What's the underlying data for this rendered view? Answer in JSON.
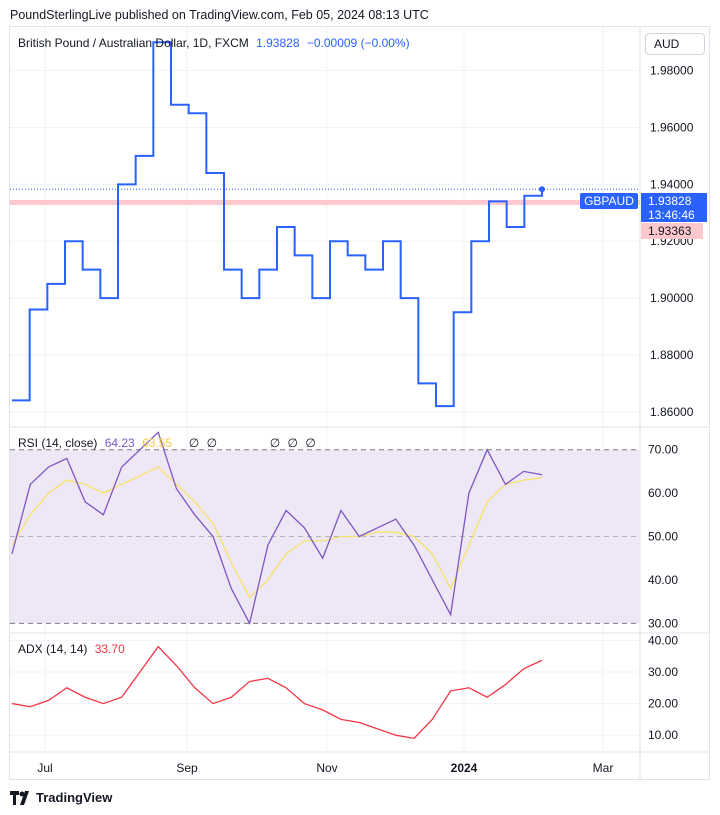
{
  "header": {
    "text": "PoundSterlingLive published on TradingView.com, Feb 05, 2024 08:13 UTC"
  },
  "price_pane": {
    "symbol_title": "British Pound / Australian Dollar, 1D, FXCM",
    "last": "1.93828",
    "change": "−0.00009 (−0.00%)",
    "currency_button": "AUD",
    "y_ticks": [
      "1.98000",
      "1.96000",
      "1.94000",
      "1.92000",
      "1.90000",
      "1.88000",
      "1.86000"
    ],
    "badge_symbol": "GBPAUD",
    "badge_price": "1.93828",
    "badge_time": "13:46:46",
    "level_price": "1.93363"
  },
  "rsi_pane": {
    "label": "RSI (14, close)",
    "rsi_value": "64.23",
    "ma_value": "63.55",
    "extra_marks": [
      "∅",
      "∅",
      "∅",
      "∅",
      "∅"
    ],
    "y_ticks": [
      "70.00",
      "60.00",
      "50.00",
      "40.00",
      "30.00"
    ]
  },
  "adx_pane": {
    "label": "ADX (14, 14)",
    "value": "33.70",
    "y_ticks": [
      "40.00",
      "30.00",
      "20.00",
      "10.00"
    ]
  },
  "x_axis": {
    "ticks": [
      "Jul",
      "Sep",
      "Nov",
      "2024",
      "Mar"
    ]
  },
  "footer": {
    "brand": "TradingView"
  },
  "colors": {
    "price": "#2962ff",
    "rsi": "#7e57c2",
    "rsi_ma": "#f7e36a",
    "adx": "#f23645",
    "level": "#ffc8cc",
    "rsi_band": "#ede7f6"
  },
  "chart_data": [
    {
      "type": "line",
      "title": "British Pound / Australian Dollar, 1D, FXCM",
      "series": [
        {
          "name": "GBPAUD",
          "x": [
            "2023-06-12",
            "2023-06-20",
            "2023-06-28",
            "2023-07-06",
            "2023-07-14",
            "2023-07-22",
            "2023-07-30",
            "2023-08-07",
            "2023-08-15",
            "2023-08-23",
            "2023-08-31",
            "2023-09-08",
            "2023-09-16",
            "2023-09-24",
            "2023-10-02",
            "2023-10-10",
            "2023-10-18",
            "2023-10-26",
            "2023-11-03",
            "2023-11-11",
            "2023-11-19",
            "2023-11-27",
            "2023-12-05",
            "2023-12-13",
            "2023-12-21",
            "2023-12-29",
            "2024-01-06",
            "2024-01-14",
            "2024-01-22",
            "2024-01-30",
            "2024-02-05"
          ],
          "values": [
            1.864,
            1.896,
            1.905,
            1.92,
            1.91,
            1.9,
            1.94,
            1.95,
            1.99,
            1.968,
            1.965,
            1.944,
            1.91,
            1.9,
            1.91,
            1.925,
            1.915,
            1.9,
            1.92,
            1.915,
            1.91,
            1.92,
            1.9,
            1.87,
            1.862,
            1.895,
            1.92,
            1.934,
            1.925,
            1.936,
            1.93828
          ]
        }
      ],
      "ylim": [
        1.855,
        1.995
      ]
    },
    {
      "type": "line",
      "title": "RSI (14, close)",
      "series": [
        {
          "name": "RSI",
          "values": [
            46,
            62,
            66,
            68,
            58,
            55,
            66,
            70,
            74,
            61,
            55,
            50,
            38,
            30,
            48,
            56,
            52,
            45,
            56,
            50,
            52,
            54,
            48,
            40,
            32,
            60,
            70,
            62,
            65,
            64.23
          ]
        },
        {
          "name": "MA",
          "values": [
            48,
            55,
            60,
            63,
            62,
            60,
            62,
            64,
            66,
            62,
            58,
            53,
            44,
            36,
            40,
            46,
            49,
            49,
            50,
            50,
            51,
            51,
            50,
            46,
            38,
            48,
            58,
            62,
            63,
            63.55
          ]
        }
      ],
      "ylim": [
        28,
        75
      ],
      "bands": [
        30,
        50,
        70
      ]
    },
    {
      "type": "line",
      "title": "ADX (14, 14)",
      "series": [
        {
          "name": "ADX",
          "values": [
            20,
            19,
            21,
            25,
            22,
            20,
            22,
            30,
            38,
            32,
            25,
            20,
            22,
            27,
            28,
            25,
            20,
            18,
            15,
            14,
            12,
            10,
            9,
            15,
            24,
            25,
            22,
            26,
            31,
            33.7
          ]
        }
      ],
      "ylim": [
        5,
        42
      ]
    }
  ]
}
